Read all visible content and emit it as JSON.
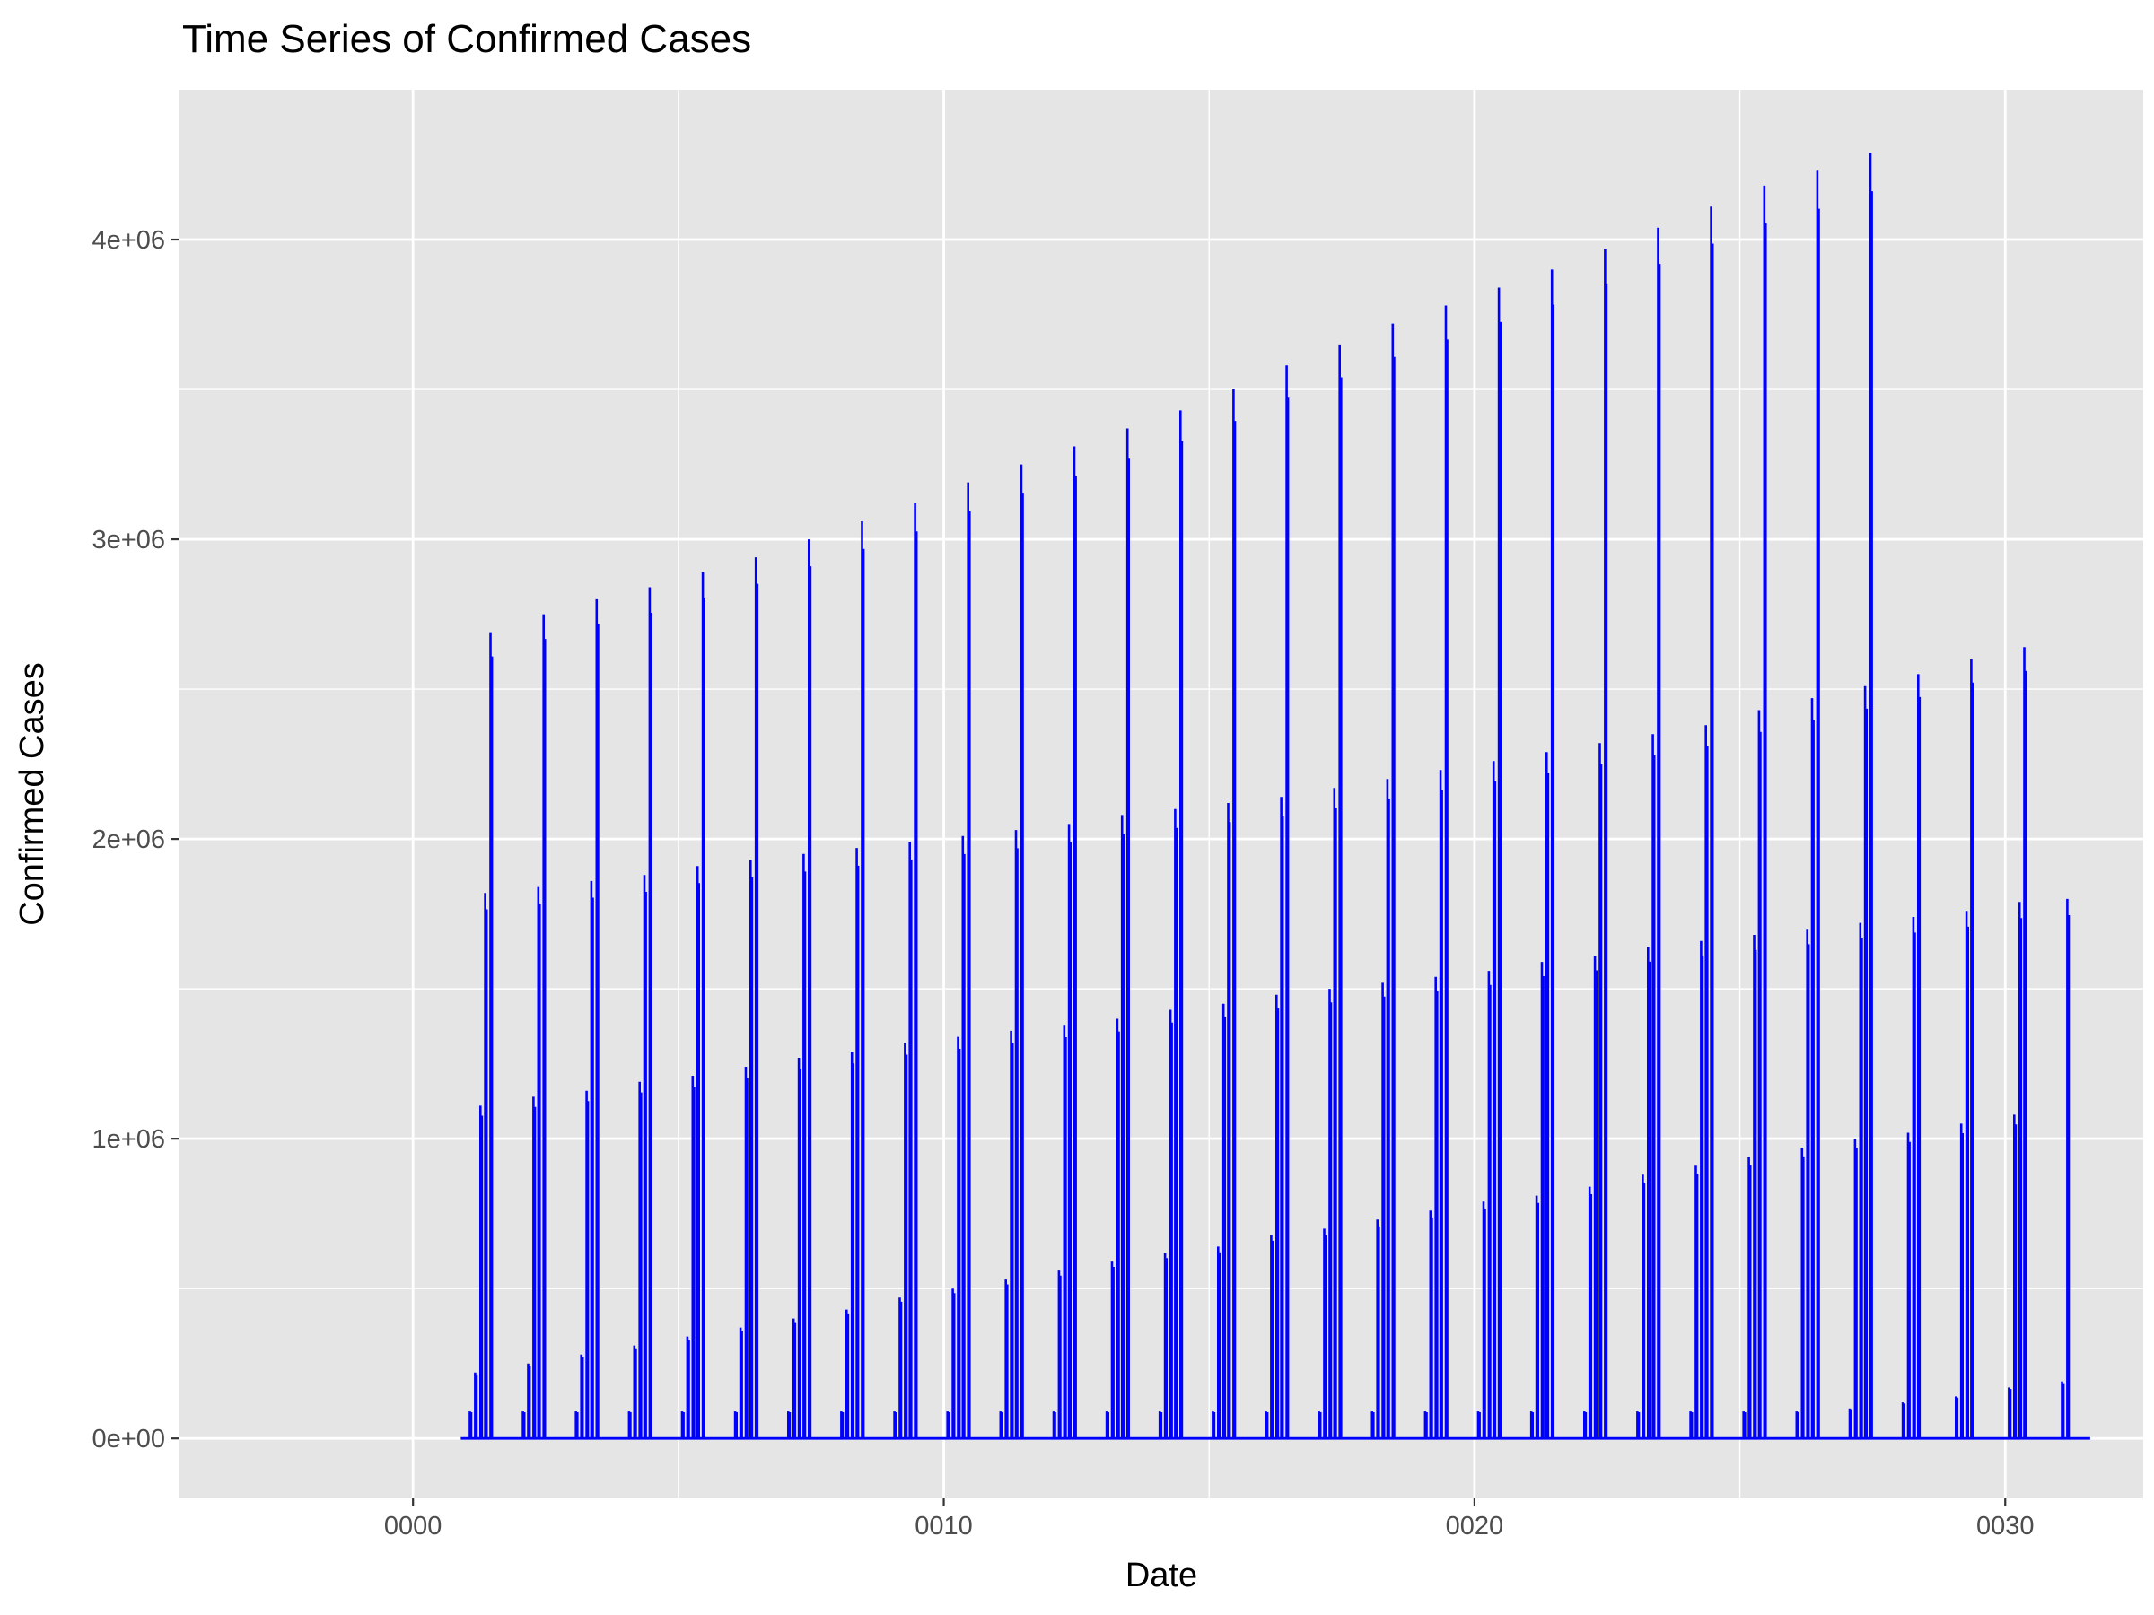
{
  "chart_data": {
    "type": "line",
    "title": "Time Series of Confirmed Cases",
    "xlabel": "Date",
    "ylabel": "Confirmed Cases",
    "xlim": [
      -4.4,
      32.6
    ],
    "ylim": [
      -200000,
      4500000
    ],
    "grid": true,
    "legend": "none",
    "line_color": "#0000ff",
    "panel_color": "#e5e5e5",
    "grid_color": "#ffffff",
    "x_ticks": [
      {
        "value": 0,
        "label": "0000"
      },
      {
        "value": 10,
        "label": "0010"
      },
      {
        "value": 20,
        "label": "0020"
      },
      {
        "value": 30,
        "label": "0030"
      }
    ],
    "y_ticks": [
      {
        "value": 0,
        "label": "0e+00"
      },
      {
        "value": 1000000,
        "label": "1e+06"
      },
      {
        "value": 2000000,
        "label": "2e+06"
      },
      {
        "value": 3000000,
        "label": "3e+06"
      },
      {
        "value": 4000000,
        "label": "4e+06"
      }
    ],
    "series": [
      {
        "cluster_start": [
          1,
          2,
          3,
          4,
          5,
          6,
          7,
          8,
          9,
          10,
          11,
          12,
          13,
          14,
          15,
          16,
          17,
          18,
          19,
          20,
          21,
          22,
          23,
          24,
          25,
          26,
          27,
          28,
          29,
          30,
          31
        ],
        "spike_values": [
          [
            90000,
            220000,
            1110000,
            1820000,
            2690000
          ],
          [
            90000,
            250000,
            1140000,
            1840000,
            2750000
          ],
          [
            90000,
            280000,
            1160000,
            1860000,
            2800000
          ],
          [
            90000,
            310000,
            1190000,
            1880000,
            2840000
          ],
          [
            90000,
            340000,
            1210000,
            1910000,
            2890000
          ],
          [
            90000,
            370000,
            1240000,
            1930000,
            2940000
          ],
          [
            90000,
            400000,
            1270000,
            1950000,
            3000000
          ],
          [
            90000,
            430000,
            1290000,
            1970000,
            3060000
          ],
          [
            90000,
            470000,
            1320000,
            1990000,
            3120000
          ],
          [
            90000,
            500000,
            1340000,
            2010000,
            3190000
          ],
          [
            90000,
            530000,
            1360000,
            2030000,
            3250000
          ],
          [
            90000,
            560000,
            1380000,
            2050000,
            3310000
          ],
          [
            90000,
            590000,
            1400000,
            2080000,
            3370000
          ],
          [
            90000,
            620000,
            1430000,
            2100000,
            3430000
          ],
          [
            90000,
            640000,
            1450000,
            2120000,
            3500000
          ],
          [
            90000,
            680000,
            1480000,
            2140000,
            3580000
          ],
          [
            90000,
            700000,
            1500000,
            2170000,
            3650000
          ],
          [
            90000,
            730000,
            1520000,
            2200000,
            3720000
          ],
          [
            90000,
            760000,
            1540000,
            2230000,
            3780000
          ],
          [
            90000,
            790000,
            1560000,
            2260000,
            3840000
          ],
          [
            90000,
            810000,
            1590000,
            2290000,
            3900000
          ],
          [
            90000,
            840000,
            1610000,
            2320000,
            3970000
          ],
          [
            90000,
            880000,
            1640000,
            2350000,
            4040000
          ],
          [
            90000,
            910000,
            1660000,
            2380000,
            4110000
          ],
          [
            90000,
            940000,
            1680000,
            2430000,
            4180000
          ],
          [
            90000,
            970000,
            1700000,
            2470000,
            4230000
          ],
          [
            100000,
            1000000,
            1720000,
            2510000,
            4290000
          ],
          [
            120000,
            1020000,
            1740000,
            2550000
          ],
          [
            140000,
            1050000,
            1760000,
            2600000
          ],
          [
            170000,
            1080000,
            1790000,
            2640000
          ],
          [
            190000,
            1800000
          ]
        ]
      }
    ]
  }
}
